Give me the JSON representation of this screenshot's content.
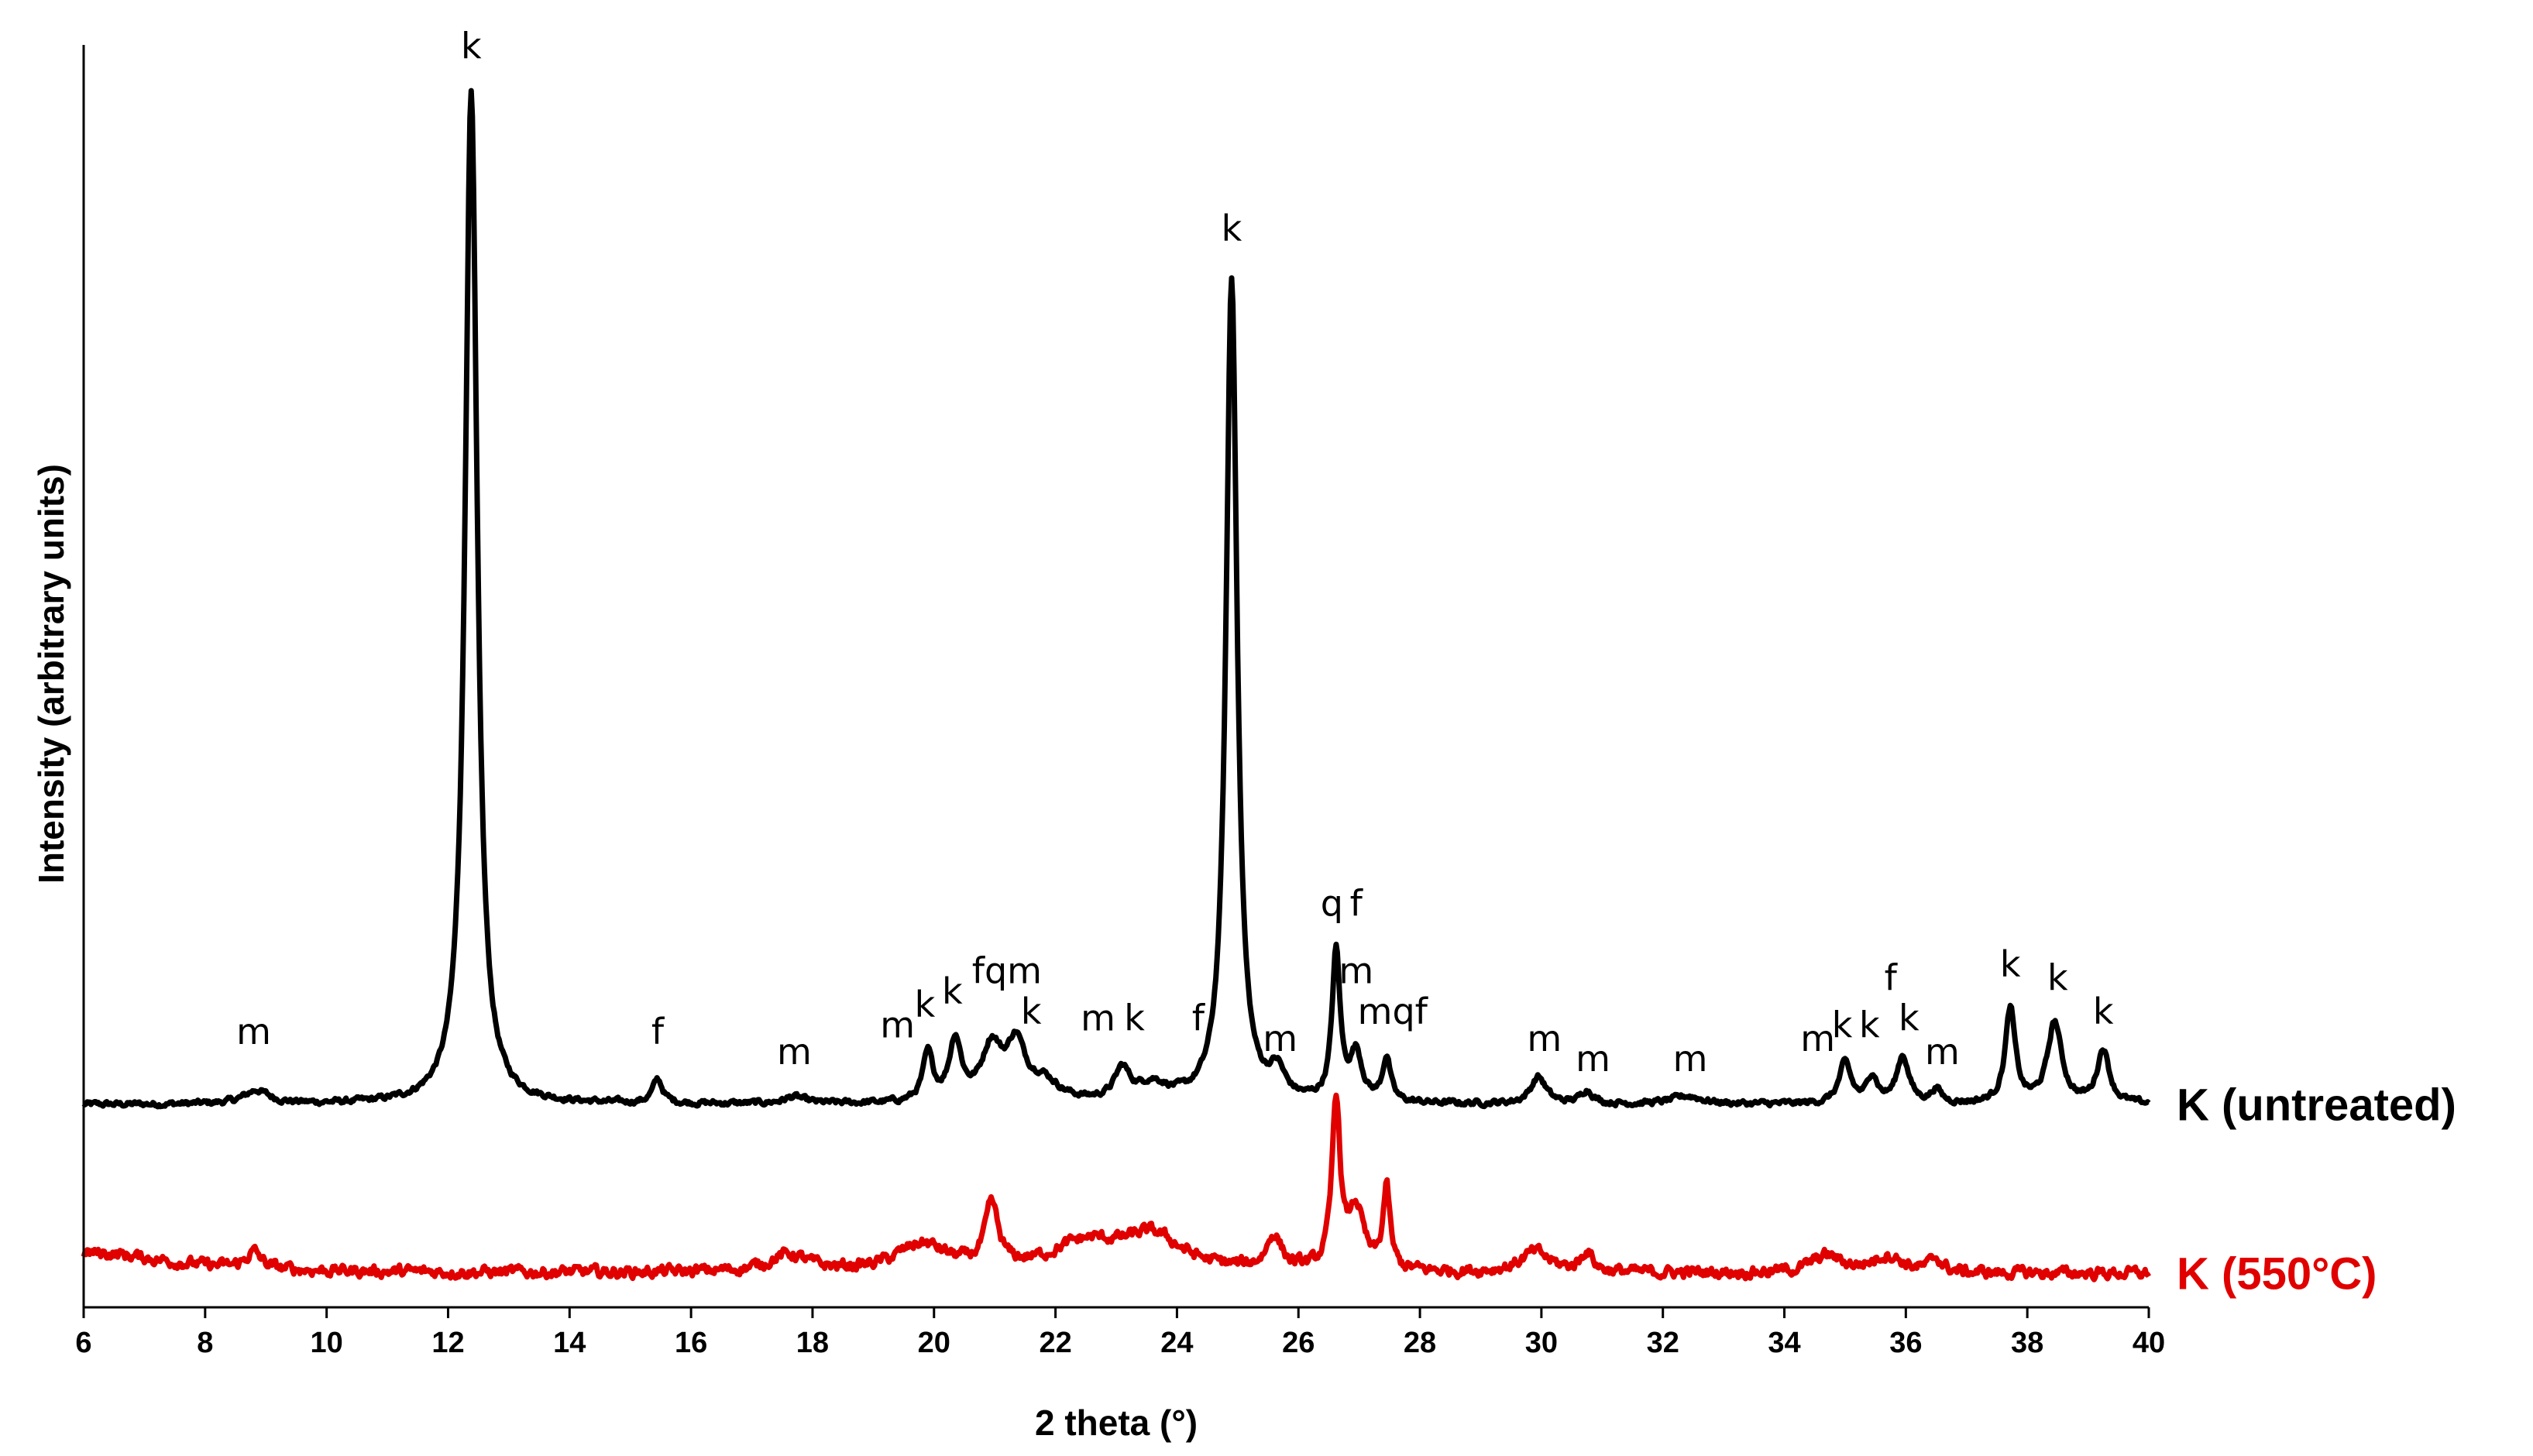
{
  "chart_data": {
    "type": "line",
    "title": "",
    "xlabel": "2 theta (°)",
    "ylabel": "Intensity (arbitrary units)",
    "xlim": [
      6,
      40
    ],
    "xticks": [
      "6",
      "8",
      "10",
      "12",
      "14",
      "16",
      "18",
      "20",
      "22",
      "24",
      "26",
      "28",
      "30",
      "32",
      "34",
      "36",
      "38",
      "40"
    ],
    "grid": false,
    "series": [
      {
        "name": "K (untreated)",
        "color": "#000000",
        "baseline": 0,
        "peaks": [
          {
            "x": 8.85,
            "h": 2,
            "w": 0.25
          },
          {
            "x": 12.38,
            "h": 150,
            "w": 0.12
          },
          {
            "x": 15.45,
            "h": 3.5,
            "w": 0.1
          },
          {
            "x": 17.7,
            "h": 1,
            "w": 0.2
          },
          {
            "x": 19.9,
            "h": 7,
            "w": 0.1
          },
          {
            "x": 20.35,
            "h": 9,
            "w": 0.12
          },
          {
            "x": 20.95,
            "h": 8,
            "w": 0.2
          },
          {
            "x": 21.35,
            "h": 8,
            "w": 0.18
          },
          {
            "x": 21.8,
            "h": 3,
            "w": 0.3
          },
          {
            "x": 23.1,
            "h": 4.5,
            "w": 0.15
          },
          {
            "x": 23.6,
            "h": 2.5,
            "w": 0.3
          },
          {
            "x": 24.9,
            "h": 122,
            "w": 0.11
          },
          {
            "x": 25.65,
            "h": 4,
            "w": 0.15
          },
          {
            "x": 26.62,
            "h": 22,
            "w": 0.08
          },
          {
            "x": 26.95,
            "h": 7,
            "w": 0.12
          },
          {
            "x": 27.45,
            "h": 6.5,
            "w": 0.08
          },
          {
            "x": 29.95,
            "h": 4,
            "w": 0.15
          },
          {
            "x": 30.75,
            "h": 2,
            "w": 0.12
          },
          {
            "x": 32.4,
            "h": 1.2,
            "w": 0.3
          },
          {
            "x": 35.0,
            "h": 6,
            "w": 0.12
          },
          {
            "x": 35.45,
            "h": 4,
            "w": 0.1
          },
          {
            "x": 35.95,
            "h": 7,
            "w": 0.12
          },
          {
            "x": 36.5,
            "h": 2,
            "w": 0.1
          },
          {
            "x": 37.72,
            "h": 14,
            "w": 0.1
          },
          {
            "x": 38.45,
            "h": 12,
            "w": 0.14
          },
          {
            "x": 39.25,
            "h": 8,
            "w": 0.12
          }
        ]
      },
      {
        "name": "K (550°C)",
        "color": "#e00000",
        "baseline": -25,
        "peaks": [
          {
            "x": 6.2,
            "h": 3,
            "w": 1.5
          },
          {
            "x": 8.8,
            "h": 2.5,
            "w": 0.15
          },
          {
            "x": 17.6,
            "h": 2.5,
            "w": 0.4
          },
          {
            "x": 19.8,
            "h": 4,
            "w": 0.5
          },
          {
            "x": 20.95,
            "h": 9,
            "w": 0.13
          },
          {
            "x": 22.5,
            "h": 4,
            "w": 0.7
          },
          {
            "x": 23.6,
            "h": 5,
            "w": 0.6
          },
          {
            "x": 25.6,
            "h": 5,
            "w": 0.15
          },
          {
            "x": 26.62,
            "h": 25,
            "w": 0.08
          },
          {
            "x": 26.95,
            "h": 9,
            "w": 0.15
          },
          {
            "x": 27.45,
            "h": 12,
            "w": 0.07
          },
          {
            "x": 29.9,
            "h": 3,
            "w": 0.3
          },
          {
            "x": 30.75,
            "h": 3,
            "w": 0.12
          },
          {
            "x": 34.7,
            "h": 2.5,
            "w": 0.3
          },
          {
            "x": 35.7,
            "h": 2.5,
            "w": 0.3
          },
          {
            "x": 36.5,
            "h": 2,
            "w": 0.12
          }
        ]
      }
    ],
    "annotations": [
      {
        "text": "m",
        "x": 8.8,
        "y": 9
      },
      {
        "text": "k",
        "x": 12.38,
        "y": 155
      },
      {
        "text": "f",
        "x": 15.45,
        "y": 9
      },
      {
        "text": "m",
        "x": 17.7,
        "y": 6
      },
      {
        "text": "m",
        "x": 19.4,
        "y": 10
      },
      {
        "text": "k",
        "x": 19.85,
        "y": 13
      },
      {
        "text": "k",
        "x": 20.3,
        "y": 15
      },
      {
        "text": "fqm",
        "x": 21.2,
        "y": 18
      },
      {
        "text": "k",
        "x": 21.6,
        "y": 12
      },
      {
        "text": "m",
        "x": 22.7,
        "y": 11
      },
      {
        "text": "k",
        "x": 23.3,
        "y": 11
      },
      {
        "text": "f",
        "x": 24.35,
        "y": 11
      },
      {
        "text": "k",
        "x": 24.9,
        "y": 128
      },
      {
        "text": "m",
        "x": 25.7,
        "y": 8
      },
      {
        "text": "q",
        "x": 26.55,
        "y": 28
      },
      {
        "text": "f",
        "x": 26.95,
        "y": 28
      },
      {
        "text": "m",
        "x": 26.95,
        "y": 18
      },
      {
        "text": "mqf",
        "x": 27.55,
        "y": 12
      },
      {
        "text": "m",
        "x": 30.05,
        "y": 8
      },
      {
        "text": "m",
        "x": 30.85,
        "y": 5
      },
      {
        "text": "m",
        "x": 32.45,
        "y": 5
      },
      {
        "text": "m",
        "x": 34.55,
        "y": 8
      },
      {
        "text": "k",
        "x": 34.95,
        "y": 10
      },
      {
        "text": "k",
        "x": 35.4,
        "y": 10
      },
      {
        "text": "f",
        "x": 35.75,
        "y": 17
      },
      {
        "text": "k",
        "x": 36.05,
        "y": 11
      },
      {
        "text": "m",
        "x": 36.6,
        "y": 6
      },
      {
        "text": "k",
        "x": 37.72,
        "y": 19
      },
      {
        "text": "k",
        "x": 38.5,
        "y": 17
      },
      {
        "text": "k",
        "x": 39.25,
        "y": 12
      }
    ]
  }
}
